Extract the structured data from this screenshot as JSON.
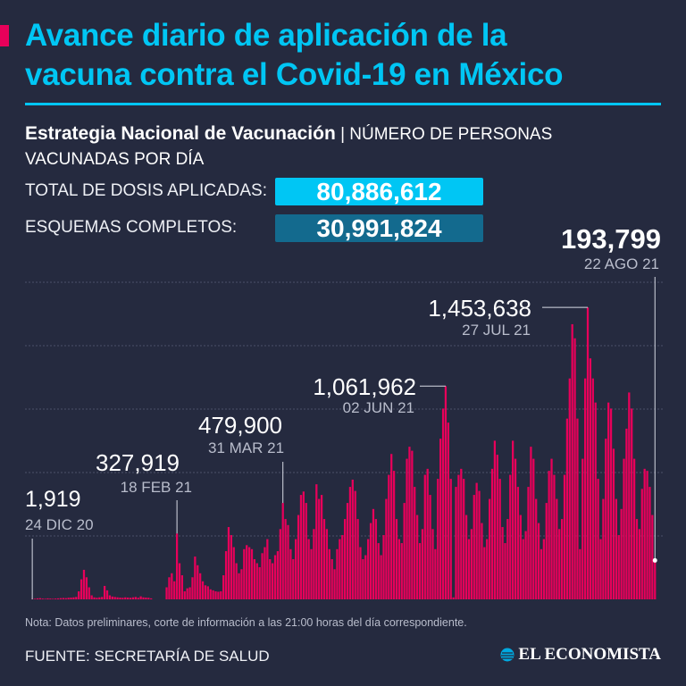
{
  "header": {
    "title_line1": "Avance diario de aplicación de la",
    "title_line2": "vacuna contra el Covid-19 en México",
    "subtitle_bold": "Estrategia Nacional de Vacunación",
    "subtitle_rest": " | NÚMERO DE PERSONAS",
    "subtitle_line2": "VACUNADAS POR DÍA"
  },
  "totals": {
    "doses_label": "TOTAL DE DOSIS APLICADAS:",
    "doses_value": "80,886,612",
    "complete_label": "ESQUEMAS COMPLETOS:",
    "complete_value": "30,991,824"
  },
  "colors": {
    "background": "#252a3f",
    "accent": "#00c6f4",
    "bar": "#e8005a",
    "box_dark": "#136a8e"
  },
  "chart_data": {
    "type": "bar",
    "title": "",
    "xlabel": "",
    "ylabel": "",
    "x_start": "24 DIC 20",
    "x_end": "22 AGO 21",
    "ylim": [
      0,
      1650000
    ],
    "grid": true,
    "annotations": [
      {
        "value": "1,919",
        "date": "24 DIC 20"
      },
      {
        "value": "327,919",
        "date": "18 FEB 21"
      },
      {
        "value": "479,900",
        "date": "31 MAR 21"
      },
      {
        "value": "1,061,962",
        "date": "02 JUN 21"
      },
      {
        "value": "1,453,638",
        "date": "27 JUL 21"
      },
      {
        "value": "193,799",
        "date": "22 AGO 21"
      }
    ],
    "values": [
      1919,
      3000,
      5000,
      6000,
      4000,
      3000,
      5000,
      4000,
      3000,
      4000,
      5000,
      6000,
      7000,
      6000,
      8000,
      9000,
      10000,
      12000,
      40000,
      100000,
      147000,
      110000,
      60000,
      20000,
      10000,
      8000,
      10000,
      12000,
      67000,
      45000,
      20000,
      14000,
      12000,
      10000,
      9000,
      8000,
      10000,
      9000,
      8000,
      10000,
      12000,
      8000,
      15000,
      10000,
      9000,
      8000,
      5000,
      0,
      0,
      0,
      0,
      0,
      60000,
      110000,
      130000,
      90000,
      327919,
      180000,
      120000,
      40000,
      55000,
      60000,
      110000,
      213000,
      170000,
      130000,
      90000,
      70000,
      65000,
      50000,
      45000,
      40000,
      38000,
      40000,
      120000,
      240000,
      360000,
      320000,
      260000,
      180000,
      130000,
      150000,
      250000,
      270000,
      260000,
      250000,
      200000,
      180000,
      160000,
      230000,
      260000,
      300000,
      200000,
      180000,
      220000,
      240000,
      350000,
      479900,
      400000,
      370000,
      250000,
      200000,
      300000,
      420000,
      520000,
      537000,
      480000,
      300000,
      250000,
      350000,
      573000,
      500000,
      520000,
      400000,
      350000,
      250000,
      200000,
      150000,
      250000,
      300000,
      320000,
      400000,
      480000,
      560000,
      596000,
      540000,
      400000,
      260000,
      200000,
      220000,
      300000,
      380000,
      450000,
      400000,
      280000,
      220000,
      320000,
      500000,
      620000,
      724000,
      640000,
      400000,
      300000,
      280000,
      480000,
      700000,
      760000,
      740000,
      560000,
      420000,
      280000,
      350000,
      620000,
      650000,
      520000,
      350000,
      250000,
      600000,
      800000,
      950000,
      1061962,
      880000,
      600000,
      10000,
      560000,
      620000,
      650000,
      600000,
      420000,
      300000,
      350000,
      520000,
      580000,
      540000,
      380000,
      260000,
      300000,
      500000,
      650000,
      790000,
      720000,
      600000,
      360000,
      280000,
      400000,
      620000,
      790000,
      700000,
      560000,
      420000,
      300000,
      340000,
      560000,
      760000,
      700000,
      500000,
      380000,
      250000,
      300000,
      480000,
      640000,
      700000,
      620000,
      500000,
      350000,
      400000,
      620000,
      900000,
      1100000,
      1370000,
      1300000,
      900000,
      250000,
      700000,
      1100000,
      1453638,
      1200000,
      1100000,
      980000,
      600000,
      300000,
      500000,
      800000,
      980000,
      950000,
      750000,
      500000,
      320000,
      450000,
      700000,
      850000,
      1030000,
      950000,
      700000,
      400000,
      350000,
      550000,
      650000,
      640000,
      560000,
      420000,
      193799
    ]
  },
  "footer": {
    "note": "Nota: Datos preliminares, corte de información a las 21:00 horas del día correspondiente.",
    "source": "FUENTE: SECRETARÍA DE SALUD",
    "logo_text": "EL ECONOMISTA"
  }
}
